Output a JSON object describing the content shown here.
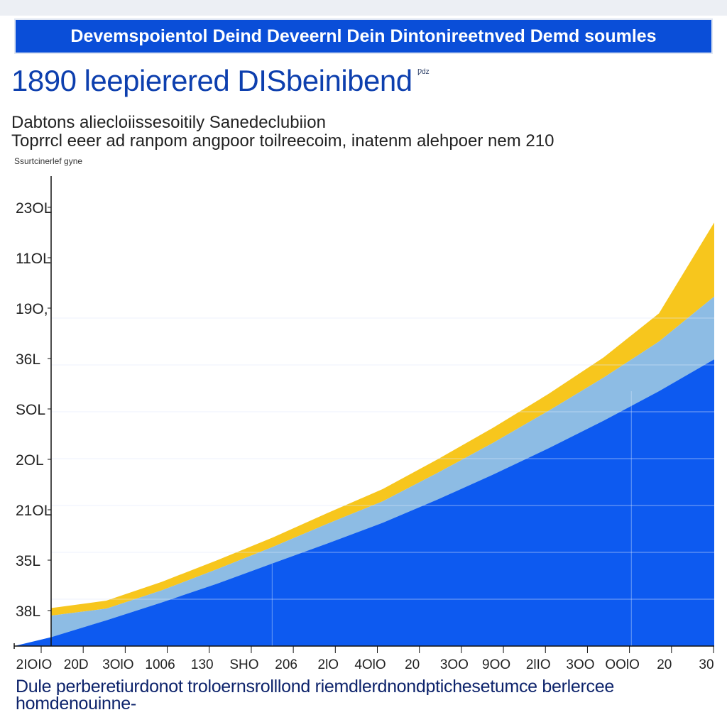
{
  "header": {
    "banner": "Devemspoientol Deind Deveernl Dein Dintonireetnved Demd soumles",
    "title": "1890 leepierered DISbeinibend",
    "title_mark": "Ƿǳ",
    "subtitle_line1": "Dabtons aliecloiissesoitily Sanedeclubiion",
    "subtitle_line2": "Toprrcl eeer ad ranpom angpoor toilreecoim, inatenm alehpoer nem 210",
    "axis_caption": "Ssurtcinerlef gyne"
  },
  "footer": {
    "line1": "Dule perberetiurdonot troloernsrolllond riemdlerdnondptichesetumce berlercee",
    "line2": "homdenouinne-"
  },
  "colors": {
    "banner": "#0a4ed8",
    "title": "#0d3fae",
    "blue_area": "#0d5af0",
    "light_blue_area": "#8dbce4",
    "yellow_area": "#f7c61d",
    "axis": "#111111",
    "footer_text": "#0d236b"
  },
  "chart_data": {
    "type": "area",
    "stacked": true,
    "grid": true,
    "legend": "none",
    "x_tick_labels": [
      "2IOIO",
      "20D",
      "3OlO",
      "1006",
      "130",
      "SHO",
      "206",
      "2lO",
      "4OlO",
      "20",
      "3OO",
      "9OO",
      "2lIO",
      "3OO",
      "OOlO",
      "20",
      "30"
    ],
    "y_tick_labels": [
      "23OL",
      "11OL",
      "19O,",
      "36L",
      "SOL",
      "2OL",
      "21OL",
      "35L",
      "38L"
    ],
    "x": [
      0,
      1,
      2,
      3,
      4,
      5,
      6,
      7,
      8,
      9,
      10,
      11,
      12
    ],
    "ylim": [
      0,
      100
    ],
    "series": [
      {
        "values": [
          1.9,
          5.5,
          9.3,
          13.3,
          17.6,
          21.9,
          26.3,
          31.3,
          36.6,
          42.2,
          48.1,
          54.4,
          61.2
        ]
      },
      {
        "values": [
          4.6,
          2.5,
          2.6,
          3.1,
          3.5,
          4.2,
          4.6,
          5.7,
          6.8,
          8.0,
          9.2,
          10.6,
          13.4
        ]
      },
      {
        "values": [
          1.6,
          1.7,
          1.8,
          1.9,
          2.0,
          2.3,
          2.6,
          2.9,
          3.2,
          3.6,
          4.3,
          6.0,
          15.8
        ]
      }
    ]
  }
}
